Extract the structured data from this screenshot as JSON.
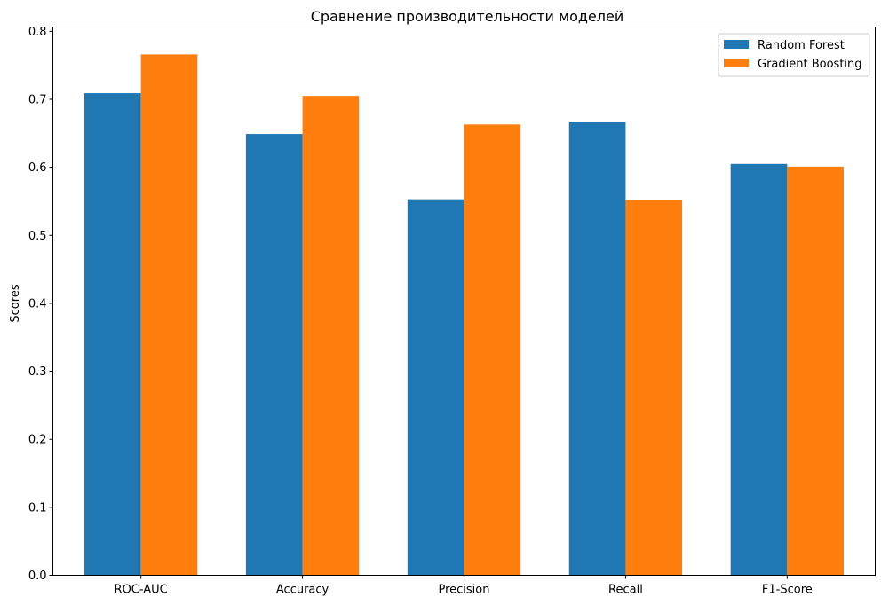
{
  "chart_data": {
    "type": "bar",
    "title": "Сравнение производительности моделей",
    "xlabel": "",
    "ylabel": "Scores",
    "categories": [
      "ROC-AUC",
      "Accuracy",
      "Precision",
      "Recall",
      "F1-Score"
    ],
    "series": [
      {
        "name": "Random Forest",
        "color": "#1f77b4",
        "values": [
          0.709,
          0.649,
          0.553,
          0.667,
          0.605
        ]
      },
      {
        "name": "Gradient Boosting",
        "color": "#ff7f0e",
        "values": [
          0.766,
          0.705,
          0.663,
          0.552,
          0.601
        ]
      }
    ],
    "ylim": [
      0,
      0.8
    ],
    "yticks": [
      0.0,
      0.1,
      0.2,
      0.3,
      0.4,
      0.5,
      0.6,
      0.7,
      0.8
    ],
    "ytick_labels": [
      "0.0",
      "0.1",
      "0.2",
      "0.3",
      "0.4",
      "0.5",
      "0.6",
      "0.7",
      "0.8"
    ],
    "grid": false,
    "legend_position": "top-right"
  }
}
